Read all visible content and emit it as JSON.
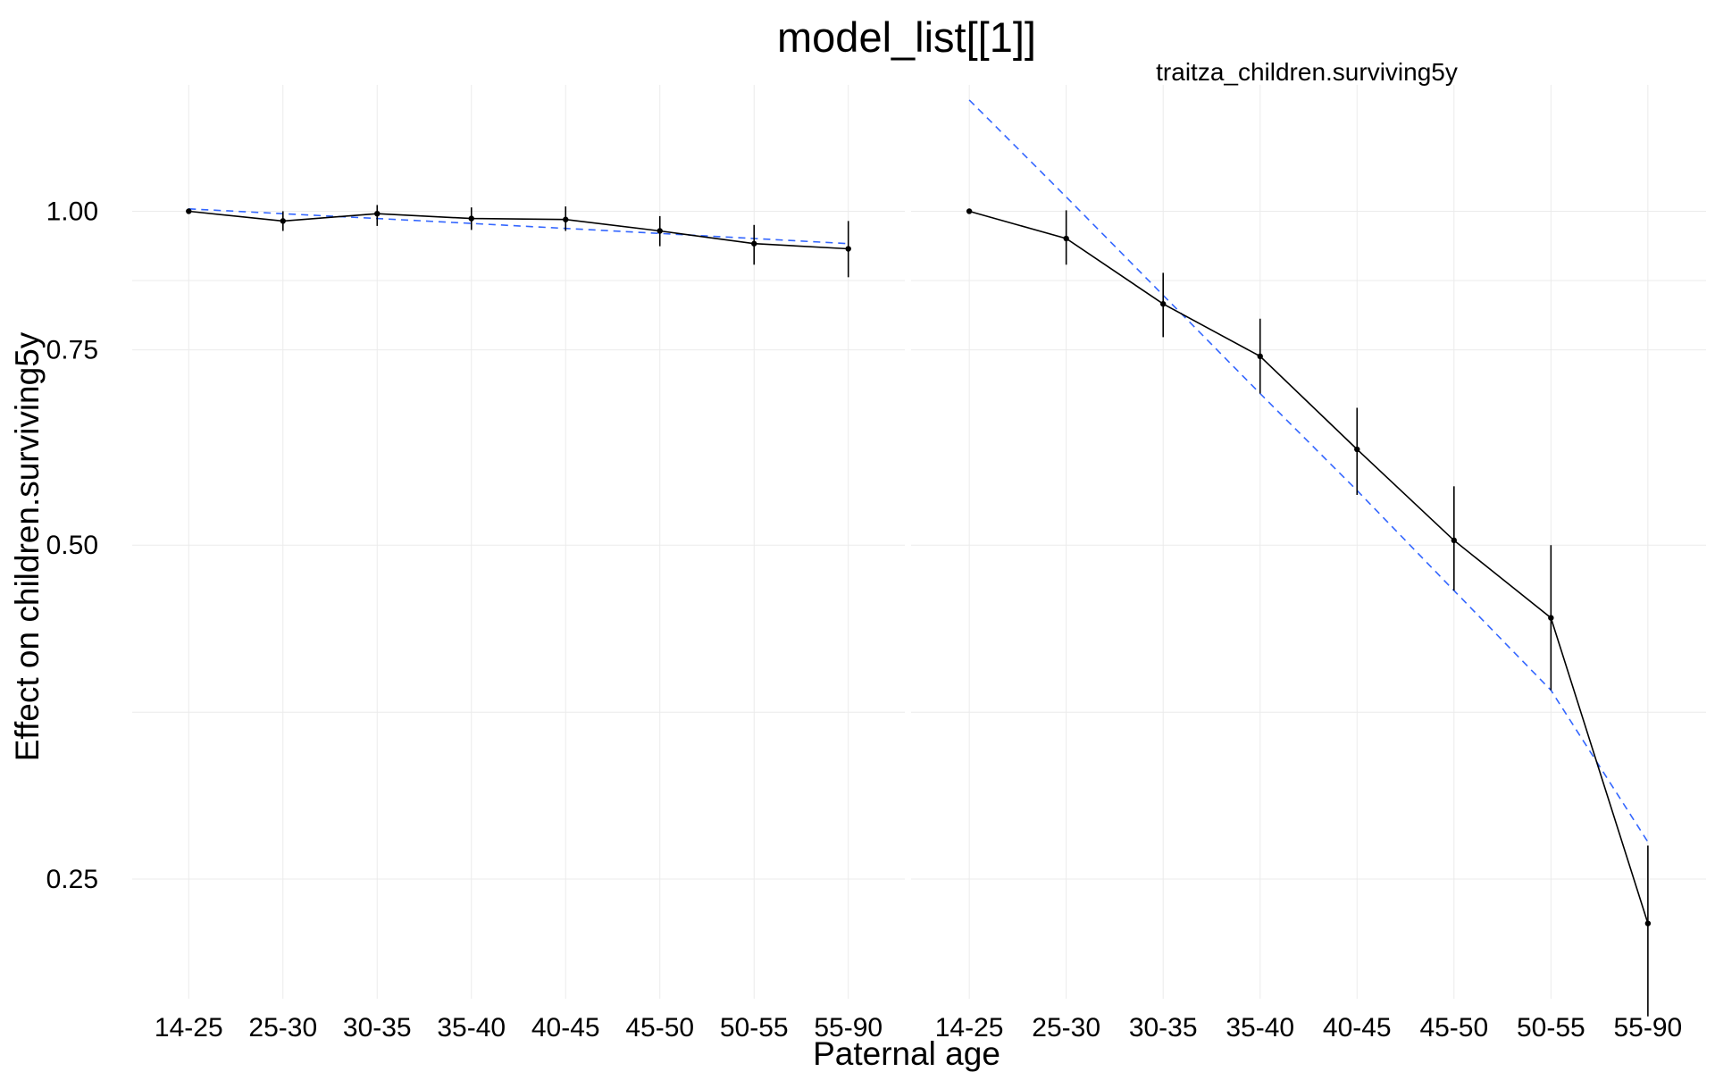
{
  "chart_data": {
    "type": "line",
    "title": "model_list[[1]]",
    "xlabel": "Paternal age",
    "ylabel": "Effect on children.surviving5y",
    "y_scale": "log",
    "ylim": [
      0.195,
      1.3
    ],
    "y_ticks": [
      0.25,
      0.5,
      0.75,
      1.0
    ],
    "y_tick_labels": [
      "0.25",
      "0.50",
      "0.75",
      "1.00"
    ],
    "y_minor_ticks": [
      0.3535,
      0.866
    ],
    "grid": true,
    "colors": {
      "estimate": "#000000",
      "fit": "#3366ff",
      "grid": "#ebebeb"
    },
    "panels": [
      {
        "strip": "",
        "categories": [
          "14-25",
          "25-30",
          "30-35",
          "35-40",
          "40-45",
          "45-50",
          "50-55",
          "55-90"
        ],
        "series": [
          {
            "kind": "estimate",
            "values": [
              1.0,
              0.98,
              0.995,
              0.985,
              0.983,
              0.96,
              0.935,
              0.925
            ],
            "lower": [
              1.0,
              0.96,
              0.97,
              0.962,
              0.96,
              0.93,
              0.895,
              0.872
            ],
            "upper": [
              1.0,
              1.0,
              1.013,
              1.008,
              1.01,
              0.99,
              0.972,
              0.98
            ]
          },
          {
            "kind": "fit",
            "values": [
              1.005,
              0.995,
              0.985,
              0.975,
              0.965,
              0.955,
              0.945,
              0.935
            ]
          }
        ]
      },
      {
        "strip": "traitza_children.surviving5y",
        "categories": [
          "14-25",
          "25-30",
          "30-35",
          "35-40",
          "40-45",
          "45-50",
          "50-55",
          "55-90"
        ],
        "series": [
          {
            "kind": "estimate",
            "values": [
              1.0,
              0.945,
              0.825,
              0.74,
              0.61,
              0.505,
              0.43,
              0.228
            ],
            "lower": [
              1.0,
              0.895,
              0.77,
              0.685,
              0.555,
              0.455,
              0.37,
              0.188
            ],
            "upper": [
              1.0,
              1.002,
              0.88,
              0.8,
              0.665,
              0.565,
              0.5,
              0.268
            ]
          },
          {
            "kind": "fit",
            "values": [
              1.26,
              1.03,
              0.84,
              0.685,
              0.56,
              0.455,
              0.37,
              0.27
            ]
          }
        ]
      }
    ]
  }
}
